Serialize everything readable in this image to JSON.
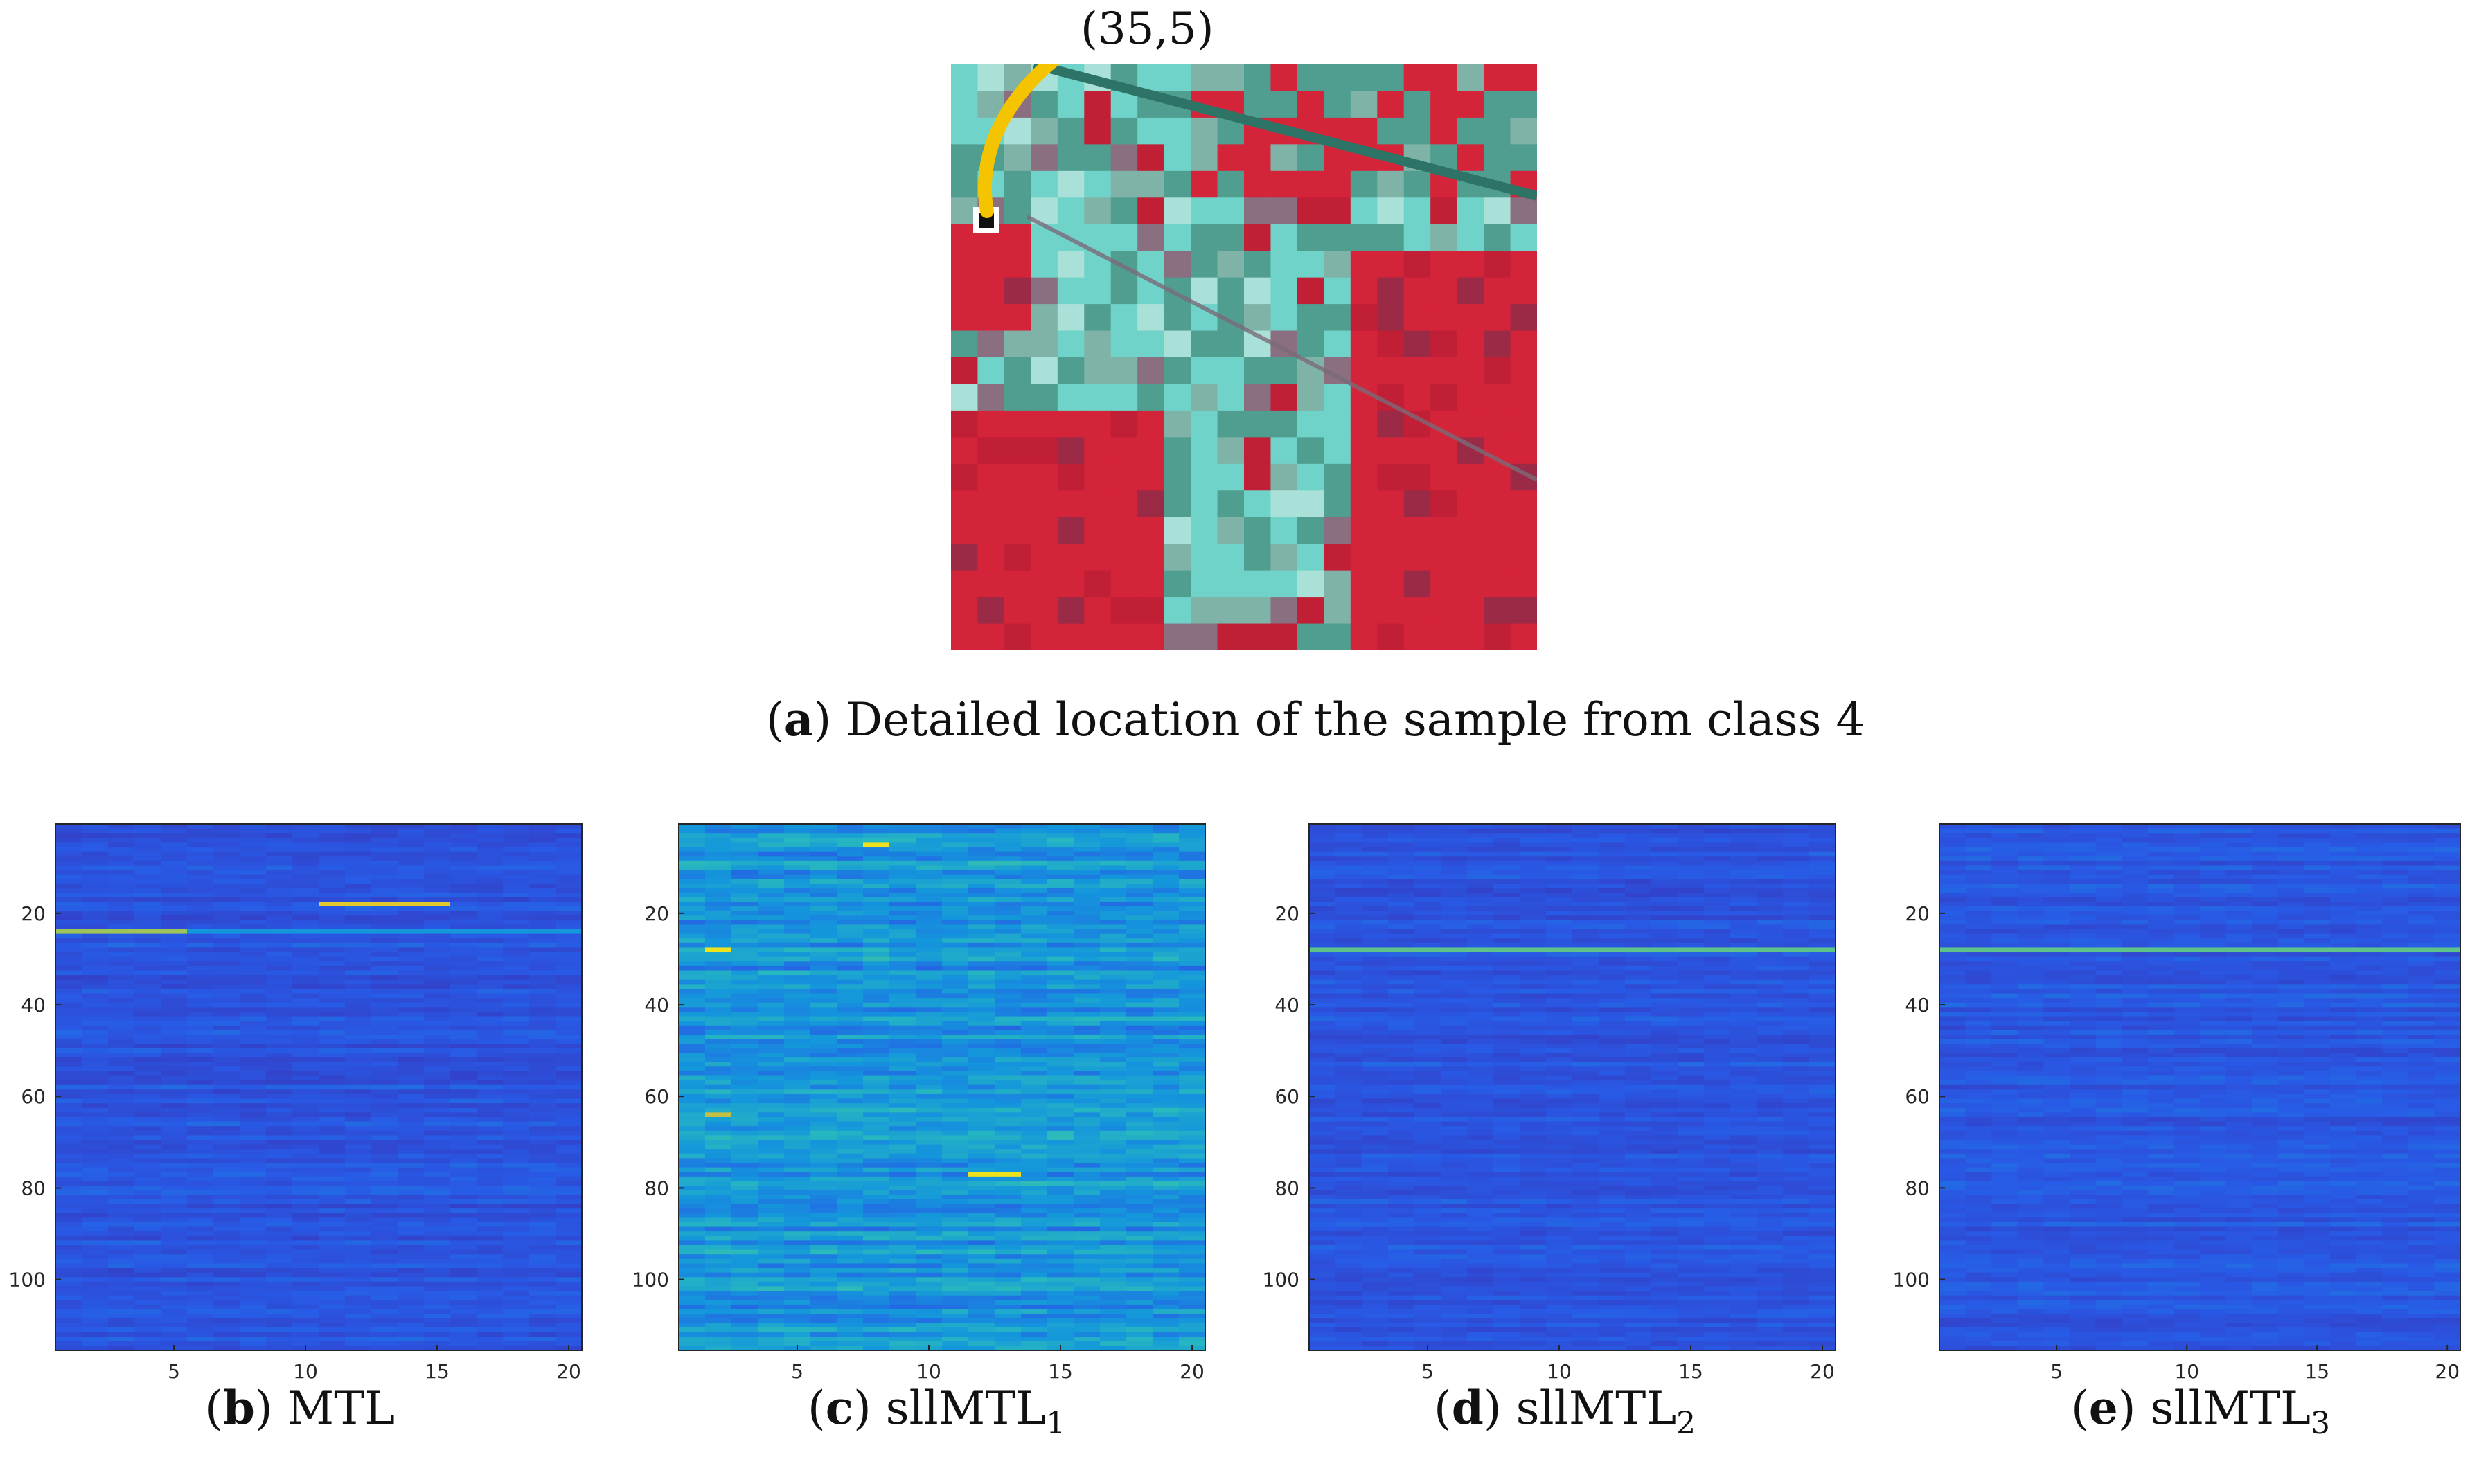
{
  "figure": {
    "panel_a": {
      "callout_label": "(35,5)",
      "caption_letter": "a",
      "caption_text": "Detailed location of the sample from class 4",
      "marker_row": 35,
      "marker_col": 5
    },
    "colors": {
      "vegetation_red": "#d4243a",
      "field_cyan": "#6fd3c9",
      "field_teal": "#4f9e90",
      "arrow_yellow": "#f5c400",
      "heat_low": "#3d2fb5",
      "heat_mid": "#2aa9c8",
      "heat_high": "#f5e22a"
    }
  },
  "chart_data": [
    {
      "type": "heatmap",
      "name": "MTL",
      "caption_letter": "b",
      "caption_text": "MTL",
      "caption_sub": "",
      "x": {
        "range": [
          0.5,
          20.5
        ],
        "ticks": [
          5,
          10,
          15,
          20
        ],
        "tick_labels": [
          "5",
          "10",
          "15",
          "20"
        ]
      },
      "y": {
        "range": [
          0.5,
          115.5
        ],
        "reversed": true,
        "ticks": [
          20,
          40,
          60,
          80,
          100
        ],
        "tick_labels": [
          "20",
          "40",
          "60",
          "80",
          "100"
        ]
      },
      "base_level": 0.22,
      "noise": 0.08,
      "highlights": [
        {
          "row": 24,
          "col_from": 1,
          "col_to": 5,
          "value": 0.8
        },
        {
          "row": 24,
          "col_from": 6,
          "col_to": 20,
          "value": 0.45
        },
        {
          "row": 18,
          "col_from": 11,
          "col_to": 15,
          "value": 0.9
        }
      ]
    },
    {
      "type": "heatmap",
      "name": "sllMTL_1",
      "caption_letter": "c",
      "caption_text": "sllMTL",
      "caption_sub": "1",
      "x": {
        "range": [
          0.5,
          20.5
        ],
        "ticks": [
          5,
          10,
          15,
          20
        ],
        "tick_labels": [
          "5",
          "10",
          "15",
          "20"
        ]
      },
      "y": {
        "range": [
          0.5,
          115.5
        ],
        "reversed": true,
        "ticks": [
          20,
          40,
          60,
          80,
          100
        ],
        "tick_labels": [
          "20",
          "40",
          "60",
          "80",
          "100"
        ]
      },
      "base_level": 0.45,
      "noise": 0.14,
      "highlights": [
        {
          "row": 28,
          "col_from": 2,
          "col_to": 2,
          "value": 0.95
        },
        {
          "row": 77,
          "col_from": 12,
          "col_to": 13,
          "value": 0.95
        },
        {
          "row": 5,
          "col_from": 8,
          "col_to": 8,
          "value": 0.95
        },
        {
          "row": 64,
          "col_from": 2,
          "col_to": 2,
          "value": 0.85
        }
      ]
    },
    {
      "type": "heatmap",
      "name": "sllMTL_2",
      "caption_letter": "d",
      "caption_text": "sllMTL",
      "caption_sub": "2",
      "x": {
        "range": [
          0.5,
          20.5
        ],
        "ticks": [
          5,
          10,
          15,
          20
        ],
        "tick_labels": [
          "5",
          "10",
          "15",
          "20"
        ]
      },
      "y": {
        "range": [
          0.5,
          115.5
        ],
        "reversed": true,
        "ticks": [
          20,
          40,
          60,
          80,
          100
        ],
        "tick_labels": [
          "20",
          "40",
          "60",
          "80",
          "100"
        ]
      },
      "base_level": 0.22,
      "noise": 0.07,
      "highlights": [
        {
          "row": 28,
          "col_from": 1,
          "col_to": 20,
          "value": 0.7
        }
      ]
    },
    {
      "type": "heatmap",
      "name": "sllMTL_3",
      "caption_letter": "e",
      "caption_text": "sllMTL",
      "caption_sub": "3",
      "x": {
        "range": [
          0.5,
          20.5
        ],
        "ticks": [
          5,
          10,
          15,
          20
        ],
        "tick_labels": [
          "5",
          "10",
          "15",
          "20"
        ]
      },
      "y": {
        "range": [
          0.5,
          115.5
        ],
        "reversed": true,
        "ticks": [
          20,
          40,
          60,
          80,
          100
        ],
        "tick_labels": [
          "20",
          "40",
          "60",
          "80",
          "100"
        ]
      },
      "base_level": 0.23,
      "noise": 0.07,
      "highlights": [
        {
          "row": 28,
          "col_from": 1,
          "col_to": 20,
          "value": 0.7
        }
      ]
    }
  ]
}
